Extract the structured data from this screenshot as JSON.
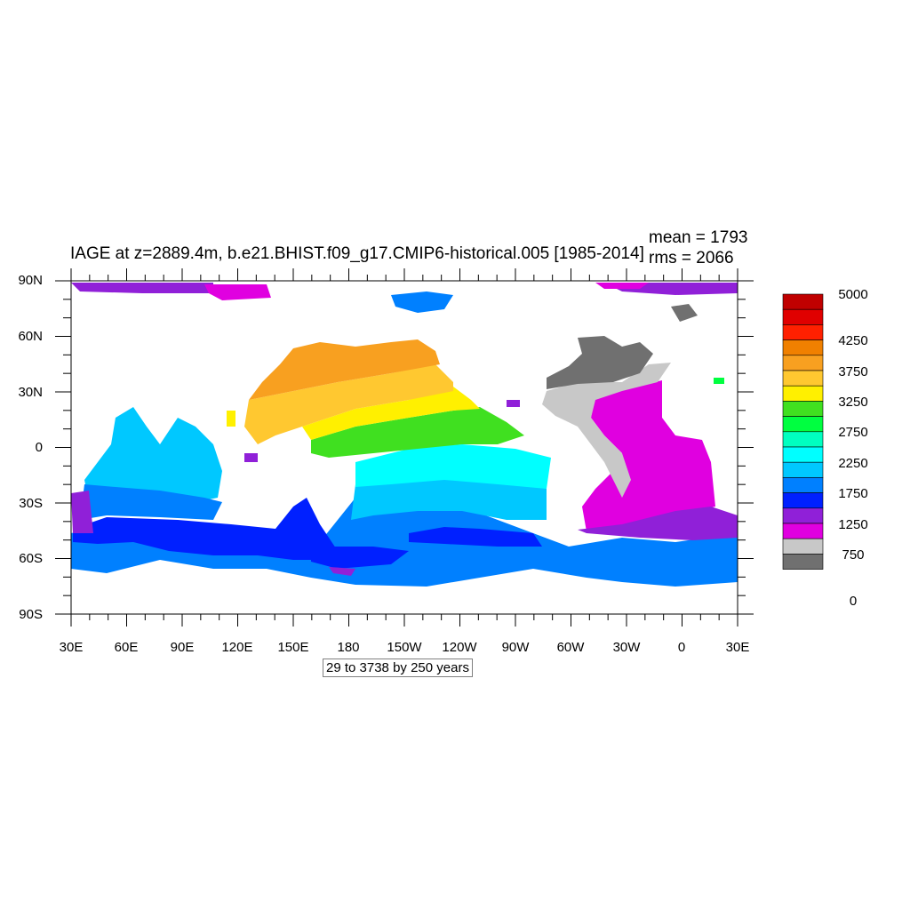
{
  "title": "IAGE at z=2889.4m, b.e21.BHIST.f09_g17.CMIP6-historical.005 [1985-2014]",
  "stats": {
    "mean": "mean = 1793",
    "rms": "rms = 2066"
  },
  "info_box": "29 to 3738 by 250 years",
  "lat_labels": [
    "90N",
    "60N",
    "30N",
    "0",
    "30S",
    "60S",
    "90S"
  ],
  "lon_labels": [
    "30E",
    "60E",
    "90E",
    "120E",
    "150E",
    "180",
    "150W",
    "120W",
    "90W",
    "60W",
    "30W",
    "0",
    "30E"
  ],
  "colorbar": {
    "labels": [
      "5000",
      "4250",
      "3750",
      "3250",
      "2750",
      "2250",
      "1750",
      "1250",
      "750",
      "0"
    ],
    "colors": [
      "#c00000",
      "#e00000",
      "#ff2000",
      "#f08000",
      "#f8a020",
      "#ffc830",
      "#fff000",
      "#40e020",
      "#00ff40",
      "#00ffc0",
      "#00ffff",
      "#00c8ff",
      "#0080ff",
      "#0020ff",
      "#9020d8",
      "#e000e0",
      "#c8c8c8",
      "#707070"
    ]
  },
  "map_regions": [
    {
      "name": "arctic-purple",
      "color": "#9020d8"
    },
    {
      "name": "arctic-magenta",
      "color": "#e000e0"
    },
    {
      "name": "north-pacific-orange",
      "color": "#f8a020"
    },
    {
      "name": "pacific-yellow",
      "color": "#ffc830"
    },
    {
      "name": "pacific-green",
      "color": "#40e020"
    },
    {
      "name": "pacific-cyan",
      "color": "#00ffff"
    },
    {
      "name": "indian-ocean-lightblue",
      "color": "#00c8ff"
    },
    {
      "name": "southern-ocean-blue",
      "color": "#0080ff"
    },
    {
      "name": "southern-ocean-darkblue",
      "color": "#0020ff"
    },
    {
      "name": "atlantic-magenta",
      "color": "#e000e0"
    },
    {
      "name": "north-atlantic-gray",
      "color": "#c8c8c8"
    },
    {
      "name": "north-atlantic-darkgray",
      "color": "#707070"
    }
  ]
}
